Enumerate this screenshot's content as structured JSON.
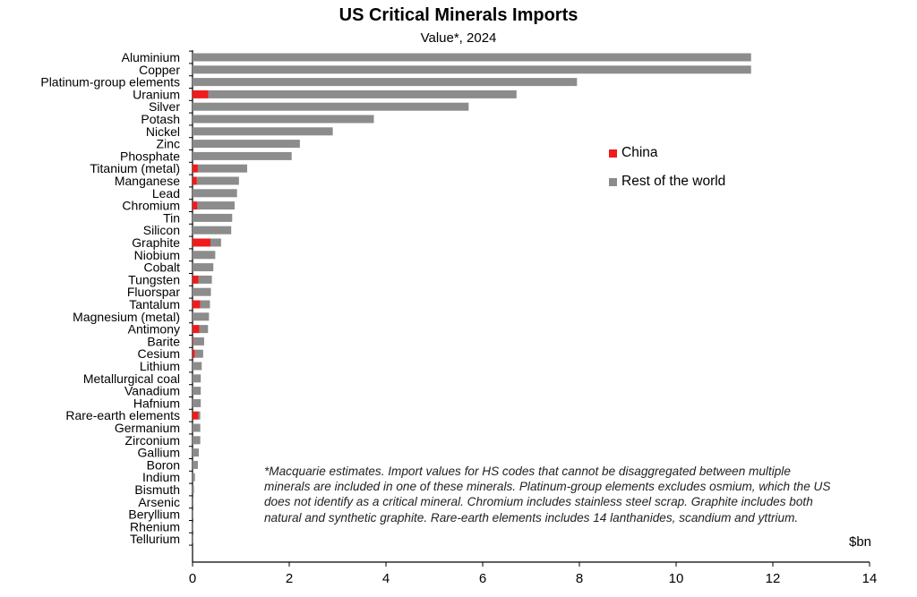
{
  "chart_data": {
    "type": "bar",
    "orientation": "horizontal",
    "stacked": true,
    "title": "US Critical Minerals Imports",
    "subtitle": "Value*, 2024",
    "xlabel": "$bn",
    "xlim": [
      0,
      14
    ],
    "xticks": [
      0,
      2,
      4,
      6,
      8,
      10,
      12,
      14
    ],
    "grid": false,
    "legend_position": "right",
    "categories": [
      "Aluminium",
      "Copper",
      "Platinum-group elements",
      "Uranium",
      "Silver",
      "Potash",
      "Nickel",
      "Zinc",
      "Phosphate",
      "Titanium (metal)",
      "Manganese",
      "Lead",
      "Chromium",
      "Tin",
      "Silicon",
      "Graphite",
      "Niobium",
      "Cobalt",
      "Tungsten",
      "Fluorspar",
      "Tantalum",
      "Magnesium (metal)",
      "Antimony",
      "Barite",
      "Cesium",
      "Lithium",
      "Metallurgical coal",
      "Vanadium",
      "Hafnium",
      "Rare-earth elements",
      "Germanium",
      "Zirconium",
      "Gallium",
      "Boron",
      "Indium",
      "Bismuth",
      "Arsenic",
      "Beryllium",
      "Rhenium",
      "Tellurium"
    ],
    "series": [
      {
        "name": "China",
        "color": "#ee1c1c",
        "values": [
          0,
          0,
          0,
          0.33,
          0,
          0,
          0,
          0,
          0,
          0.11,
          0.09,
          0,
          0.1,
          0,
          0,
          0.37,
          0,
          0,
          0.12,
          0,
          0.16,
          0,
          0.14,
          0.01,
          0.05,
          0,
          0,
          0,
          0,
          0.12,
          0,
          0,
          0,
          0,
          0,
          0,
          0,
          0,
          0,
          0
        ]
      },
      {
        "name": "Rest of the world",
        "color": "#8c8c8c",
        "values": [
          11.55,
          11.55,
          7.95,
          6.37,
          5.71,
          3.75,
          2.9,
          2.22,
          2.05,
          1.02,
          0.87,
          0.92,
          0.77,
          0.82,
          0.8,
          0.22,
          0.47,
          0.43,
          0.28,
          0.38,
          0.2,
          0.34,
          0.18,
          0.23,
          0.17,
          0.19,
          0.17,
          0.17,
          0.17,
          0.04,
          0.16,
          0.16,
          0.13,
          0.11,
          0.05,
          0.03,
          0.02,
          0.005,
          0.005,
          0.005
        ]
      }
    ],
    "footnote": "*Macquarie estimates. Import values for HS codes that cannot be disaggregated between  multiple minerals are included in one of these minerals. Platinum-group elements excludes osmium, which the US does not identify as a critical mineral. Chromium includes stainless steel scrap. Graphite includes both natural and synthetic graphite.  Rare-earth elements includes 14 lanthanides, scandium and yttrium."
  }
}
